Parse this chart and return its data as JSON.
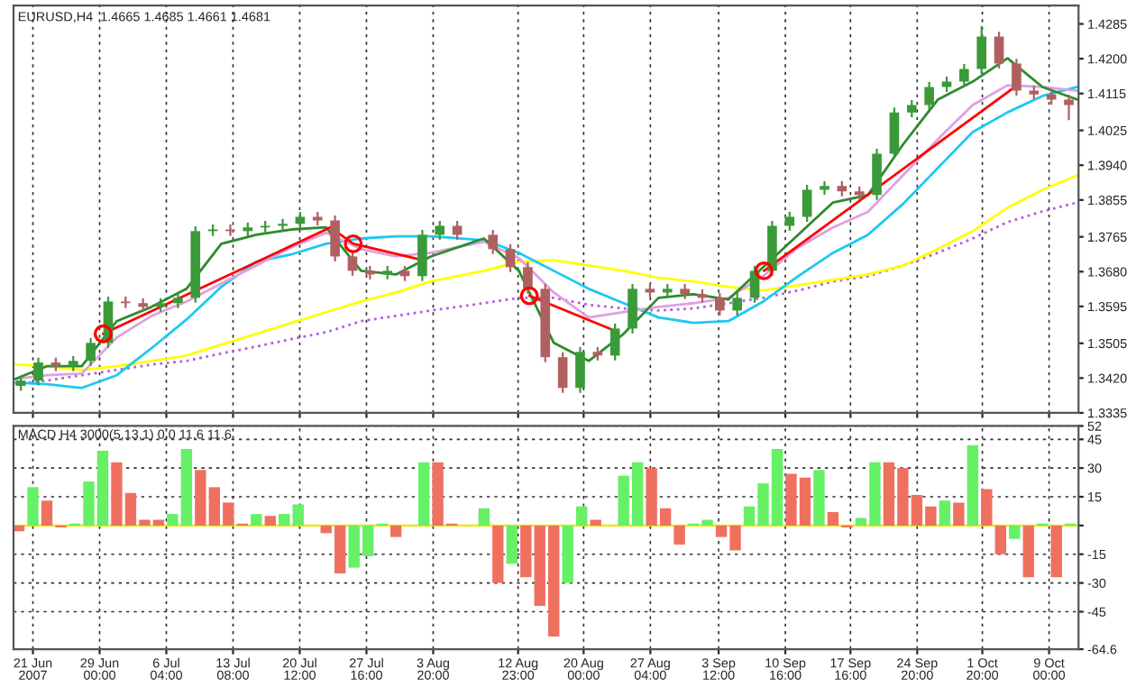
{
  "chart_data": [
    {
      "type": "candlestick",
      "title": "EURUSD,H4  1.4665 1.4685 1.4661 1.4681",
      "x": [
        "2007-06-20T13:00",
        "2007-06-22T10:00",
        "2007-06-24T07:00",
        "2007-06-26T04:00",
        "2007-06-28T01:00",
        "2007-06-29T22:00",
        "2007-07-01T19:00",
        "2007-07-03T16:00",
        "2007-07-05T13:00",
        "2007-07-07T10:00",
        "2007-07-09T07:00",
        "2007-07-11T04:00",
        "2007-07-13T01:00",
        "2007-07-14T22:00",
        "2007-07-16T19:00",
        "2007-07-18T16:00",
        "2007-07-20T13:00",
        "2007-07-22T10:00",
        "2007-07-24T07:00",
        "2007-07-26T04:00",
        "2007-07-28T01:00",
        "2007-07-29T22:00",
        "2007-07-31T19:00",
        "2007-08-02T16:00",
        "2007-08-04T13:00",
        "2007-08-06T10:00",
        "2007-08-10T06:00",
        "2007-08-12T03:00",
        "2007-08-14T00:00",
        "2007-08-15T21:00",
        "2007-08-17T18:00",
        "2007-08-19T15:00",
        "2007-08-21T12:00",
        "2007-08-23T09:00",
        "2007-08-25T06:00",
        "2007-08-27T03:00",
        "2007-08-29T00:00",
        "2007-08-30T21:00",
        "2007-09-01T18:00",
        "2007-09-03T15:00",
        "2007-09-05T12:00",
        "2007-09-07T09:00",
        "2007-09-09T06:00",
        "2007-09-11T03:00",
        "2007-09-13T00:00",
        "2007-09-14T21:00",
        "2007-09-16T18:00",
        "2007-09-18T15:00",
        "2007-09-20T12:00",
        "2007-09-22T09:00",
        "2007-09-24T06:00",
        "2007-09-26T03:00",
        "2007-09-28T00:00",
        "2007-09-29T21:00",
        "2007-10-01T18:00",
        "2007-10-03T15:00",
        "2007-10-05T12:00",
        "2007-10-07T09:00",
        "2007-10-09T06:00",
        "2007-10-11T03:00"
      ],
      "ohlc": [
        [
          1.3401,
          1.3426,
          1.3389,
          1.3414
        ],
        [
          1.3414,
          1.347,
          1.3402,
          1.3458
        ],
        [
          1.3458,
          1.347,
          1.3437,
          1.3449
        ],
        [
          1.3449,
          1.3474,
          1.3437,
          1.3462
        ],
        [
          1.3462,
          1.3518,
          1.345,
          1.3506
        ],
        [
          1.3506,
          1.3619,
          1.3494,
          1.3607
        ],
        [
          1.3607,
          1.3619,
          1.3591,
          1.3603
        ],
        [
          1.3603,
          1.3615,
          1.3582,
          1.3594
        ],
        [
          1.3594,
          1.3615,
          1.3582,
          1.3603
        ],
        [
          1.3603,
          1.3628,
          1.3591,
          1.3616
        ],
        [
          1.3616,
          1.3791,
          1.3604,
          1.3779
        ],
        [
          1.3779,
          1.3795,
          1.3767,
          1.3783
        ],
        [
          1.3783,
          1.3795,
          1.3767,
          1.3779
        ],
        [
          1.3779,
          1.38,
          1.3767,
          1.3788
        ],
        [
          1.3788,
          1.3804,
          1.3776,
          1.3792
        ],
        [
          1.3792,
          1.3809,
          1.378,
          1.3797
        ],
        [
          1.3797,
          1.3826,
          1.3785,
          1.3814
        ],
        [
          1.3814,
          1.3826,
          1.3793,
          1.3805
        ],
        [
          1.3805,
          1.3817,
          1.3705,
          1.3717
        ],
        [
          1.3717,
          1.3729,
          1.367,
          1.3682
        ],
        [
          1.3682,
          1.3694,
          1.3661,
          1.3673
        ],
        [
          1.3673,
          1.3694,
          1.3661,
          1.3682
        ],
        [
          1.3682,
          1.3694,
          1.3657,
          1.3669
        ],
        [
          1.3669,
          1.3782,
          1.3657,
          1.377
        ],
        [
          1.377,
          1.3804,
          1.3758,
          1.3792
        ],
        [
          1.3792,
          1.3804,
          1.3758,
          1.377
        ],
        [
          1.377,
          1.3782,
          1.3723,
          1.3735
        ],
        [
          1.3735,
          1.3747,
          1.3679,
          1.3691
        ],
        [
          1.3691,
          1.3703,
          1.3626,
          1.3638
        ],
        [
          1.3638,
          1.365,
          1.3459,
          1.3471
        ],
        [
          1.3471,
          1.3483,
          1.3384,
          1.3396
        ],
        [
          1.3396,
          1.3496,
          1.3384,
          1.3484
        ],
        [
          1.3484,
          1.3496,
          1.3463,
          1.3475
        ],
        [
          1.3475,
          1.3553,
          1.3463,
          1.3541
        ],
        [
          1.3541,
          1.365,
          1.3529,
          1.3638
        ],
        [
          1.3638,
          1.365,
          1.3617,
          1.3629
        ],
        [
          1.3629,
          1.365,
          1.3617,
          1.3638
        ],
        [
          1.3638,
          1.365,
          1.3613,
          1.3625
        ],
        [
          1.3625,
          1.3637,
          1.3604,
          1.3616
        ],
        [
          1.3616,
          1.3628,
          1.3573,
          1.3585
        ],
        [
          1.3585,
          1.3628,
          1.3573,
          1.3616
        ],
        [
          1.3616,
          1.3694,
          1.3604,
          1.3682
        ],
        [
          1.3682,
          1.3804,
          1.367,
          1.3792
        ],
        [
          1.3792,
          1.3826,
          1.378,
          1.3814
        ],
        [
          1.3814,
          1.3892,
          1.3802,
          1.388
        ],
        [
          1.388,
          1.3901,
          1.3868,
          1.3889
        ],
        [
          1.3889,
          1.3901,
          1.3864,
          1.3876
        ],
        [
          1.3876,
          1.3888,
          1.3855,
          1.3867
        ],
        [
          1.3867,
          1.398,
          1.3855,
          1.3968
        ],
        [
          1.3968,
          1.4081,
          1.3956,
          1.4069
        ],
        [
          1.4069,
          1.4099,
          1.4057,
          1.4087
        ],
        [
          1.4087,
          1.4143,
          1.4075,
          1.4131
        ],
        [
          1.4131,
          1.4156,
          1.4119,
          1.4144
        ],
        [
          1.4144,
          1.4187,
          1.4132,
          1.4175
        ],
        [
          1.4175,
          1.428,
          1.4163,
          1.4254
        ],
        [
          1.4254,
          1.4266,
          1.4176,
          1.4188
        ],
        [
          1.4188,
          1.42,
          1.411,
          1.4122
        ],
        [
          1.4122,
          1.4134,
          1.4101,
          1.4113
        ],
        [
          1.4113,
          1.4125,
          1.4088,
          1.41
        ],
        [
          1.41,
          1.4112,
          1.405,
          1.4087
        ]
      ],
      "colors": [
        "#3a9a3a",
        "#3a9a3a",
        "#b06060",
        "#3a9a3a",
        "#3a9a3a",
        "#3a9a3a",
        "#b06060",
        "#b06060",
        "#3a9a3a",
        "#3a9a3a",
        "#3a9a3a",
        "#3a9a3a",
        "#b06060",
        "#3a9a3a",
        "#3a9a3a",
        "#3a9a3a",
        "#3a9a3a",
        "#b06060",
        "#b06060",
        "#b06060",
        "#b06060",
        "#3a9a3a",
        "#b06060",
        "#3a9a3a",
        "#3a9a3a",
        "#b06060",
        "#b06060",
        "#b06060",
        "#b06060",
        "#b06060",
        "#b06060",
        "#3a9a3a",
        "#b06060",
        "#3a9a3a",
        "#3a9a3a",
        "#b06060",
        "#3a9a3a",
        "#b06060",
        "#b06060",
        "#b06060",
        "#3a9a3a",
        "#3a9a3a",
        "#3a9a3a",
        "#3a9a3a",
        "#3a9a3a",
        "#3a9a3a",
        "#b06060",
        "#b06060",
        "#3a9a3a",
        "#3a9a3a",
        "#3a9a3a",
        "#3a9a3a",
        "#3a9a3a",
        "#3a9a3a",
        "#3a9a3a",
        "#b06060",
        "#b06060",
        "#b06060",
        "#b06060",
        "#b06060"
      ],
      "series": [
        {
          "type": "line",
          "color": "#b060e0",
          "line_style": "dotted",
          "x": [
            "2007-06-19T23:00",
            "2007-06-23T08:00",
            "2007-06-27T02:00",
            "2007-06-30T20:00",
            "2007-07-04T14:00",
            "2007-07-08T08:00",
            "2007-07-12T02:00",
            "2007-07-15T20:00",
            "2007-07-19T14:00",
            "2007-07-23T08:00",
            "2007-07-27T02:00",
            "2007-07-30T20:00",
            "2007-08-03T14:00",
            "2007-08-09T07:00",
            "2007-08-13T01:00",
            "2007-08-16T19:00",
            "2007-08-20T13:00",
            "2007-08-24T07:00",
            "2007-08-28T01:00",
            "2007-08-31T19:00",
            "2007-09-04T13:00",
            "2007-09-08T07:00",
            "2007-09-12T01:00",
            "2007-09-15T19:00",
            "2007-09-19T13:00",
            "2007-09-23T07:00",
            "2007-09-27T01:00",
            "2007-09-30T19:00",
            "2007-10-04T13:00",
            "2007-10-08T07:00",
            "2007-10-12T01:00"
          ],
          "values": [
            1.3405,
            1.3414,
            1.3427,
            1.344,
            1.3453,
            1.3462,
            1.348,
            1.3497,
            1.3515,
            1.3532,
            1.3559,
            1.3572,
            1.3585,
            1.3603,
            1.3616,
            1.3616,
            1.3599,
            1.359,
            1.3585,
            1.359,
            1.3603,
            1.3616,
            1.3634,
            1.3656,
            1.3669,
            1.3695,
            1.3726,
            1.3761,
            1.3801,
            1.3827,
            1.3849
          ]
        },
        {
          "type": "line",
          "color": "#ffff00",
          "line_style": "solid",
          "x": [
            "2007-06-19T23:00",
            "2007-06-23T08:00",
            "2007-06-27T02:00",
            "2007-06-30T20:00",
            "2007-07-04T14:00",
            "2007-07-08T08:00",
            "2007-07-12T02:00",
            "2007-07-15T20:00",
            "2007-07-19T14:00",
            "2007-07-23T08:00",
            "2007-07-27T02:00",
            "2007-07-30T20:00",
            "2007-08-03T14:00",
            "2007-08-09T07:00",
            "2007-08-13T01:00",
            "2007-08-16T19:00",
            "2007-08-20T13:00",
            "2007-08-24T07:00",
            "2007-08-28T01:00",
            "2007-08-31T19:00",
            "2007-09-04T13:00",
            "2007-09-08T07:00",
            "2007-09-12T01:00",
            "2007-09-15T19:00",
            "2007-09-19T13:00",
            "2007-09-23T07:00",
            "2007-09-27T01:00",
            "2007-09-30T19:00",
            "2007-10-04T13:00",
            "2007-10-08T07:00",
            "2007-10-12T01:00"
          ],
          "values": [
            1.3453,
            1.3449,
            1.344,
            1.3449,
            1.3462,
            1.3475,
            1.3502,
            1.3528,
            1.3555,
            1.3581,
            1.3607,
            1.3629,
            1.3656,
            1.3682,
            1.3704,
            1.3708,
            1.3695,
            1.3682,
            1.3665,
            1.3656,
            1.3643,
            1.3634,
            1.3647,
            1.366,
            1.3673,
            1.3695,
            1.3735,
            1.3779,
            1.3836,
            1.388,
            1.3915
          ]
        },
        {
          "type": "line",
          "color": "#1ec8f0",
          "line_style": "solid",
          "x": [
            "2007-06-19T23:00",
            "2007-06-23T08:00",
            "2007-06-27T02:00",
            "2007-06-30T20:00",
            "2007-07-04T14:00",
            "2007-07-08T08:00",
            "2007-07-12T02:00",
            "2007-07-15T20:00",
            "2007-07-19T14:00",
            "2007-07-23T08:00",
            "2007-07-27T02:00",
            "2007-07-30T20:00",
            "2007-08-03T14:00",
            "2007-08-09T07:00",
            "2007-08-13T01:00",
            "2007-08-16T19:00",
            "2007-08-20T13:00",
            "2007-08-24T07:00",
            "2007-08-28T01:00",
            "2007-08-31T19:00",
            "2007-09-04T13:00",
            "2007-09-08T07:00",
            "2007-09-12T01:00",
            "2007-09-15T19:00",
            "2007-09-19T13:00",
            "2007-09-23T07:00",
            "2007-09-27T01:00",
            "2007-09-30T19:00",
            "2007-10-04T13:00",
            "2007-10-08T07:00",
            "2007-10-12T01:00"
          ],
          "values": [
            1.3409,
            1.3405,
            1.3396,
            1.3427,
            1.3493,
            1.3563,
            1.3643,
            1.3704,
            1.3722,
            1.3748,
            1.3761,
            1.3766,
            1.3766,
            1.3757,
            1.3726,
            1.3682,
            1.3638,
            1.3603,
            1.3568,
            1.3555,
            1.3559,
            1.3607,
            1.3669,
            1.3726,
            1.377,
            1.3845,
            1.3933,
            1.4021,
            1.4069,
            1.4109,
            1.4131
          ]
        },
        {
          "type": "line",
          "color": "#e0a0e0",
          "line_style": "solid",
          "x": [
            "2007-06-19T23:00",
            "2007-06-23T08:00",
            "2007-06-27T02:00",
            "2007-06-30T20:00",
            "2007-07-04T14:00",
            "2007-07-08T08:00",
            "2007-07-12T02:00",
            "2007-07-15T20:00",
            "2007-07-19T14:00",
            "2007-07-23T08:00",
            "2007-07-27T02:00",
            "2007-07-30T20:00",
            "2007-08-03T14:00",
            "2007-08-09T07:00",
            "2007-08-13T01:00",
            "2007-08-16T19:00",
            "2007-08-20T13:00",
            "2007-08-24T07:00",
            "2007-08-28T01:00",
            "2007-08-31T19:00",
            "2007-09-04T13:00",
            "2007-09-08T07:00",
            "2007-09-12T01:00",
            "2007-09-15T19:00",
            "2007-09-19T13:00",
            "2007-09-23T07:00",
            "2007-09-27T01:00",
            "2007-09-30T19:00",
            "2007-10-04T13:00",
            "2007-10-08T07:00",
            "2007-10-12T01:00"
          ],
          "values": [
            1.3418,
            1.3427,
            1.3431,
            1.3519,
            1.3572,
            1.3607,
            1.3651,
            1.3695,
            1.3739,
            1.3775,
            1.3735,
            1.3717,
            1.3726,
            1.3753,
            1.3713,
            1.3629,
            1.3568,
            1.3581,
            1.3594,
            1.3603,
            1.3616,
            1.3669,
            1.3739,
            1.3788,
            1.3826,
            1.3915,
            1.4003,
            1.4087,
            1.4135,
            1.4131,
            1.4122
          ]
        },
        {
          "type": "line",
          "color": "#2e8b2e",
          "line_style": "solid",
          "x": [
            "2007-06-19T23:00",
            "2007-06-23T08:00",
            "2007-06-27T02:00",
            "2007-06-30T20:00",
            "2007-07-04T14:00",
            "2007-07-08T08:00",
            "2007-07-12T02:00",
            "2007-07-15T20:00",
            "2007-07-19T14:00",
            "2007-07-23T08:00",
            "2007-07-27T02:00",
            "2007-07-30T20:00",
            "2007-08-03T14:00",
            "2007-08-09T07:00",
            "2007-08-13T01:00",
            "2007-08-16T19:00",
            "2007-08-20T13:00",
            "2007-08-24T07:00",
            "2007-08-28T01:00",
            "2007-08-31T19:00",
            "2007-09-04T13:00",
            "2007-09-08T07:00",
            "2007-09-12T01:00",
            "2007-09-15T19:00",
            "2007-09-19T13:00",
            "2007-09-23T07:00",
            "2007-09-27T01:00",
            "2007-09-30T19:00",
            "2007-10-04T13:00",
            "2007-10-08T07:00",
            "2007-10-12T01:00"
          ],
          "values": [
            1.3418,
            1.3449,
            1.3449,
            1.3559,
            1.3594,
            1.3638,
            1.3748,
            1.377,
            1.3783,
            1.3788,
            1.3682,
            1.3673,
            1.3717,
            1.3761,
            1.3682,
            1.3506,
            1.3462,
            1.3528,
            1.3616,
            1.3625,
            1.3612,
            1.3691,
            1.377,
            1.3849,
            1.3867,
            1.399,
            1.41,
            1.4144,
            1.4201,
            1.4131,
            1.41
          ]
        },
        {
          "type": "line",
          "color": "#ff0000",
          "line_style": "solid",
          "x": [
            "2007-06-29T09:00",
            "2007-07-23T19:00",
            "2007-07-26T06:00",
            "2007-08-02T18:00",
            "2007-08-08T00:00",
            "2007-08-14T04:00",
            "2007-08-23T05:00",
            "2007-08-30T18:00",
            "2007-09-08T09:00",
            "2007-10-05T08:00"
          ],
          "values": [
            1.3528,
            1.3788,
            1.3748,
            1.3708,
            null,
            1.3621,
            1.3537,
            null,
            1.3682,
            1.4131
          ]
        },
        {
          "type": "scatter",
          "color": "#ff0000",
          "marker": "circle",
          "x": [
            "2007-06-29T09:00",
            "2007-07-26T06:00",
            "2007-08-14T04:00",
            "2007-09-08T09:00"
          ],
          "values": [
            1.3528,
            1.3748,
            1.3621,
            1.3682
          ]
        }
      ],
      "xlim": [
        "2007-06-19T18:00",
        "2007-10-12T04:00"
      ],
      "xticks": [
        {
          "value": "2007-06-21T20:00",
          "label": null
        },
        {
          "value": "2007-06-29T00:00",
          "label": null
        },
        {
          "value": "2007-07-06T04:00",
          "label": null
        },
        {
          "value": "2007-07-13T08:00",
          "label": null
        },
        {
          "value": "2007-07-20T12:00",
          "label": null
        },
        {
          "value": "2007-07-27T16:00",
          "label": null
        },
        {
          "value": "2007-08-03T20:00",
          "label": null
        },
        {
          "value": "2007-08-12T23:00",
          "label": null
        },
        {
          "value": "2007-08-20T00:00",
          "label": null
        },
        {
          "value": "2007-08-27T04:00",
          "label": null
        },
        {
          "value": "2007-09-03T12:00",
          "label": null
        },
        {
          "value": "2007-09-10T16:00",
          "label": null
        },
        {
          "value": "2007-09-17T16:00",
          "label": null
        },
        {
          "value": "2007-09-24T20:00",
          "label": null
        },
        {
          "value": "2007-10-01T20:00",
          "label": null
        },
        {
          "value": "2007-10-09T00:00",
          "label": null
        }
      ],
      "ylim": [
        1.3335,
        1.433
      ],
      "yticks": [
        {
          "value": 1.3335,
          "label": "1.3335"
        },
        {
          "value": 1.342,
          "label": "1.3420"
        },
        {
          "value": 1.3505,
          "label": "1.3505"
        },
        {
          "value": 1.3595,
          "label": "1.3595"
        },
        {
          "value": 1.368,
          "label": "1.3680"
        },
        {
          "value": 1.3765,
          "label": "1.3765"
        },
        {
          "value": 1.3855,
          "label": "1.3855"
        },
        {
          "value": 1.394,
          "label": "1.3940"
        },
        {
          "value": 1.4025,
          "label": "1.4025"
        },
        {
          "value": 1.4115,
          "label": "1.4115"
        },
        {
          "value": 1.42,
          "label": "1.4200"
        },
        {
          "value": 1.4285,
          "label": "1.4285"
        }
      ],
      "grid": "x",
      "tick_labels": "y"
    },
    {
      "type": "bar",
      "title": "MACD H4 3000(5,13,1) 0.0 11.6 11.6",
      "series": [
        {
          "x": [
            "2007-06-20T08:00",
            "2007-06-21T20:00",
            "2007-06-23T08:00",
            "2007-06-24T20:00",
            "2007-06-26T08:00",
            "2007-06-27T20:00",
            "2007-06-29T08:00",
            "2007-06-30T20:00",
            "2007-07-02T08:00",
            "2007-07-03T20:00",
            "2007-07-05T08:00",
            "2007-07-06T20:00",
            "2007-07-08T08:00",
            "2007-07-09T20:00",
            "2007-07-11T08:00",
            "2007-07-12T20:00",
            "2007-07-14T08:00",
            "2007-07-15T20:00",
            "2007-07-17T08:00",
            "2007-07-18T20:00",
            "2007-07-20T08:00",
            "2007-07-21T20:00",
            "2007-07-23T08:00",
            "2007-07-24T20:00",
            "2007-07-26T08:00",
            "2007-07-27T20:00",
            "2007-07-29T08:00",
            "2007-07-30T20:00",
            "2007-08-01T08:00",
            "2007-08-02T20:00",
            "2007-08-04T08:00",
            "2007-08-05T20:00",
            "2007-08-09T07:00",
            "2007-08-10T19:00",
            "2007-08-12T07:00",
            "2007-08-13T19:00",
            "2007-08-15T07:00",
            "2007-08-16T19:00",
            "2007-08-18T07:00",
            "2007-08-19T19:00",
            "2007-08-21T07:00",
            "2007-08-22T19:00",
            "2007-08-24T07:00",
            "2007-08-25T19:00",
            "2007-08-27T07:00",
            "2007-08-28T19:00",
            "2007-08-30T07:00",
            "2007-08-31T19:00",
            "2007-09-02T07:00",
            "2007-09-03T19:00",
            "2007-09-05T07:00",
            "2007-09-06T19:00",
            "2007-09-08T07:00",
            "2007-09-09T19:00",
            "2007-09-11T07:00",
            "2007-09-12T19:00",
            "2007-09-14T07:00",
            "2007-09-15T19:00",
            "2007-09-17T07:00",
            "2007-09-18T19:00",
            "2007-09-20T07:00",
            "2007-09-21T19:00",
            "2007-09-23T07:00",
            "2007-09-24T19:00",
            "2007-09-26T07:00",
            "2007-09-27T19:00",
            "2007-09-29T07:00",
            "2007-09-30T19:00",
            "2007-10-02T07:00",
            "2007-10-03T19:00",
            "2007-10-05T07:00",
            "2007-10-06T19:00",
            "2007-10-08T07:00",
            "2007-10-09T19:00",
            "2007-10-11T07:00"
          ],
          "values": [
            -3,
            20,
            13,
            -1,
            1,
            23,
            39,
            33,
            17,
            3,
            3,
            6,
            40,
            29,
            20,
            12,
            1,
            6,
            5,
            6,
            11,
            0,
            -4,
            -25,
            -22,
            -16,
            1,
            -6,
            0,
            33,
            33,
            1,
            9,
            -30,
            -20,
            -27,
            -42,
            -58,
            -30,
            10,
            3,
            0,
            26,
            33,
            30,
            9,
            -10,
            1,
            3,
            -6,
            -13,
            10,
            22,
            40,
            27,
            25,
            29,
            7,
            -1,
            4,
            33,
            33,
            30,
            16,
            10,
            13,
            12,
            42,
            19,
            -15,
            -7,
            -27,
            1,
            -27,
            1
          ],
          "colors": [
            "#f07060",
            "#66f066",
            "#f07060",
            "#f07060",
            "#66f066",
            "#66f066",
            "#66f066",
            "#f07060",
            "#f07060",
            "#f07060",
            "#f07060",
            "#66f066",
            "#66f066",
            "#f07060",
            "#f07060",
            "#f07060",
            "#f07060",
            "#66f066",
            "#f07060",
            "#66f066",
            "#66f066",
            "#f07060",
            "#f07060",
            "#f07060",
            "#66f066",
            "#66f066",
            "#66f066",
            "#f07060",
            "#66f066",
            "#66f066",
            "#f07060",
            "#f07060",
            "#66f066",
            "#f07060",
            "#66f066",
            "#f07060",
            "#f07060",
            "#f07060",
            "#66f066",
            "#66f066",
            "#f07060",
            "#f07060",
            "#66f066",
            "#66f066",
            "#f07060",
            "#f07060",
            "#f07060",
            "#66f066",
            "#66f066",
            "#f07060",
            "#f07060",
            "#66f066",
            "#66f066",
            "#66f066",
            "#f07060",
            "#f07060",
            "#66f066",
            "#f07060",
            "#f07060",
            "#66f066",
            "#66f066",
            "#f07060",
            "#f07060",
            "#f07060",
            "#f07060",
            "#66f066",
            "#f07060",
            "#66f066",
            "#f07060",
            "#f07060",
            "#66f066",
            "#f07060",
            "#66f066",
            "#f07060",
            "#66f066"
          ]
        }
      ],
      "ref_lines": [
        {
          "axis": "y",
          "value": 0,
          "color": "#e8e800"
        }
      ],
      "xlim": [
        "2007-06-19T18:00",
        "2007-10-12T04:00"
      ],
      "xticks": [
        {
          "value": "2007-06-21T20:00",
          "label": "21 Jun 2007"
        },
        {
          "value": "2007-06-29T00:00",
          "label": "29 Jun 00:00"
        },
        {
          "value": "2007-07-06T04:00",
          "label": "6 Jul 04:00"
        },
        {
          "value": "2007-07-13T08:00",
          "label": "13 Jul 08:00"
        },
        {
          "value": "2007-07-20T12:00",
          "label": "20 Jul 12:00"
        },
        {
          "value": "2007-07-27T16:00",
          "label": "27 Jul 16:00"
        },
        {
          "value": "2007-08-03T20:00",
          "label": "3 Aug 20:00"
        },
        {
          "value": "2007-08-12T23:00",
          "label": "12 Aug 23:00"
        },
        {
          "value": "2007-08-20T00:00",
          "label": "20 Aug 00:00"
        },
        {
          "value": "2007-08-27T04:00",
          "label": "27 Aug 04:00"
        },
        {
          "value": "2007-09-03T12:00",
          "label": "3 Sep 12:00"
        },
        {
          "value": "2007-09-10T16:00",
          "label": "10 Sep 16:00"
        },
        {
          "value": "2007-09-17T16:00",
          "label": "17 Sep 16:00"
        },
        {
          "value": "2007-09-24T20:00",
          "label": "24 Sep 20:00"
        },
        {
          "value": "2007-10-01T20:00",
          "label": "1 Oct 20:00"
        },
        {
          "value": "2007-10-09T00:00",
          "label": "9 Oct 00:00"
        }
      ],
      "ylim": [
        -64.6,
        52
      ],
      "yticks": [
        52,
        45,
        30,
        15,
        {
          "value": 0,
          "label": null
        },
        -15,
        -30,
        -45,
        -64.6
      ],
      "grid": true
    }
  ]
}
